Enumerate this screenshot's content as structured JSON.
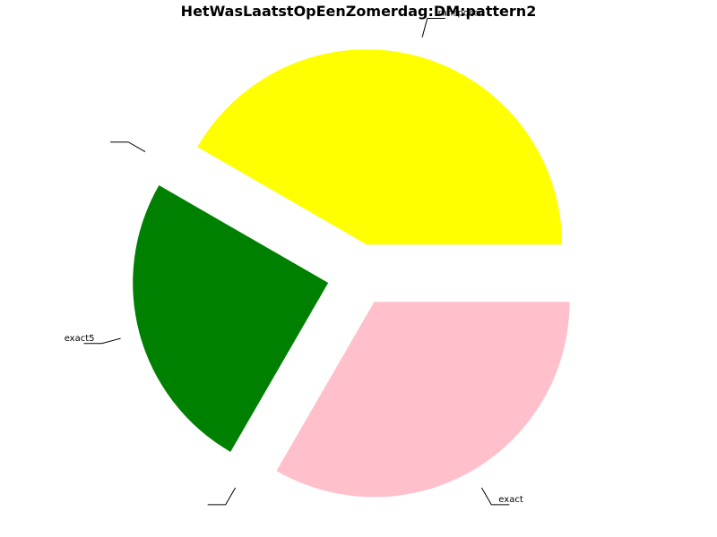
{
  "chart_data": {
    "type": "pie",
    "title": "HetWasLaatstOpEenZomerdag:DM:pattern2",
    "start_angle": 0,
    "direction": "counterclockwise",
    "exploded": true,
    "slices": [
      {
        "label": "transposed",
        "value": 150,
        "color": "#ffff00"
      },
      {
        "label": "",
        "value": 0,
        "color": "#ffffff"
      },
      {
        "label": "exact5",
        "value": 90,
        "color": "#008000"
      },
      {
        "label": "",
        "value": 0,
        "color": "#ffffff"
      },
      {
        "label": "exact",
        "value": 120,
        "color": "#ffc0cb"
      }
    ]
  }
}
